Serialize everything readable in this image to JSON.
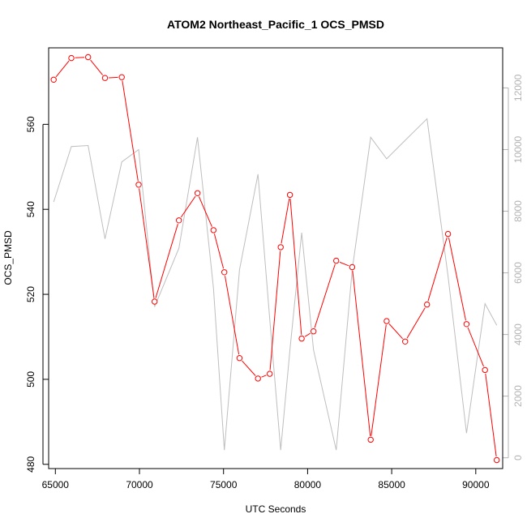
{
  "chart_data": {
    "type": "line",
    "title": "ATOM2 Northeast_Pacific_1 OCS_PMSD",
    "xlabel": "UTC Seconds",
    "ylabel": "OCS_PMSD",
    "x_ticks": [
      "65000",
      "70000",
      "75000",
      "80000",
      "85000",
      "90000"
    ],
    "y_ticks": [
      "480",
      "500",
      "520",
      "540",
      "560"
    ],
    "y2_ticks": [
      "0",
      "2000",
      "4000",
      "6000",
      "8000",
      "10000",
      "12000"
    ],
    "xlim": [
      64600,
      91600
    ],
    "ylim": [
      479,
      578
    ],
    "y2lim": [
      -350,
      13300
    ],
    "colors": {
      "primary": "#ff0000",
      "secondary": "#bebebe",
      "axis": "#000000",
      "secondary_axis": "#b3b3b3"
    },
    "series": [
      {
        "axis": "left",
        "color": "#ff0000",
        "marker": "open-circle",
        "x": [
          64900,
          65950,
          66950,
          67950,
          68950,
          69950,
          70900,
          72350,
          73450,
          74400,
          75050,
          75950,
          77050,
          77750,
          78400,
          78950,
          79650,
          80350,
          81700,
          82650,
          83750,
          84700,
          85800,
          87100,
          88350,
          89450,
          90550,
          91250
        ],
        "values": [
          570.5,
          575.6,
          575.8,
          570.9,
          571.1,
          545.8,
          518.3,
          537.4,
          543.8,
          535.1,
          525.2,
          505.0,
          500.2,
          501.3,
          531.1,
          543.4,
          509.6,
          511.3,
          527.9,
          526.4,
          485.8,
          513.7,
          508.9,
          517.6,
          534.2,
          513.0,
          502.2,
          481.0
        ]
      },
      {
        "axis": "right",
        "color": "#bebebe",
        "marker": "none",
        "x": [
          64900,
          65950,
          66950,
          67950,
          68950,
          69950,
          70900,
          72350,
          73450,
          74400,
          75050,
          75950,
          77050,
          77750,
          78400,
          78950,
          79650,
          80350,
          81700,
          82650,
          83750,
          84700,
          85800,
          87100,
          88350,
          89450,
          90550,
          91250
        ],
        "values": [
          8300,
          10100,
          10130,
          7100,
          9600,
          10000,
          4900,
          6800,
          10400,
          5500,
          250,
          6100,
          9200,
          4500,
          250,
          3500,
          7300,
          3500,
          250,
          6100,
          10400,
          9700,
          10300,
          11000,
          5900,
          800,
          5000,
          4300
        ]
      }
    ]
  }
}
